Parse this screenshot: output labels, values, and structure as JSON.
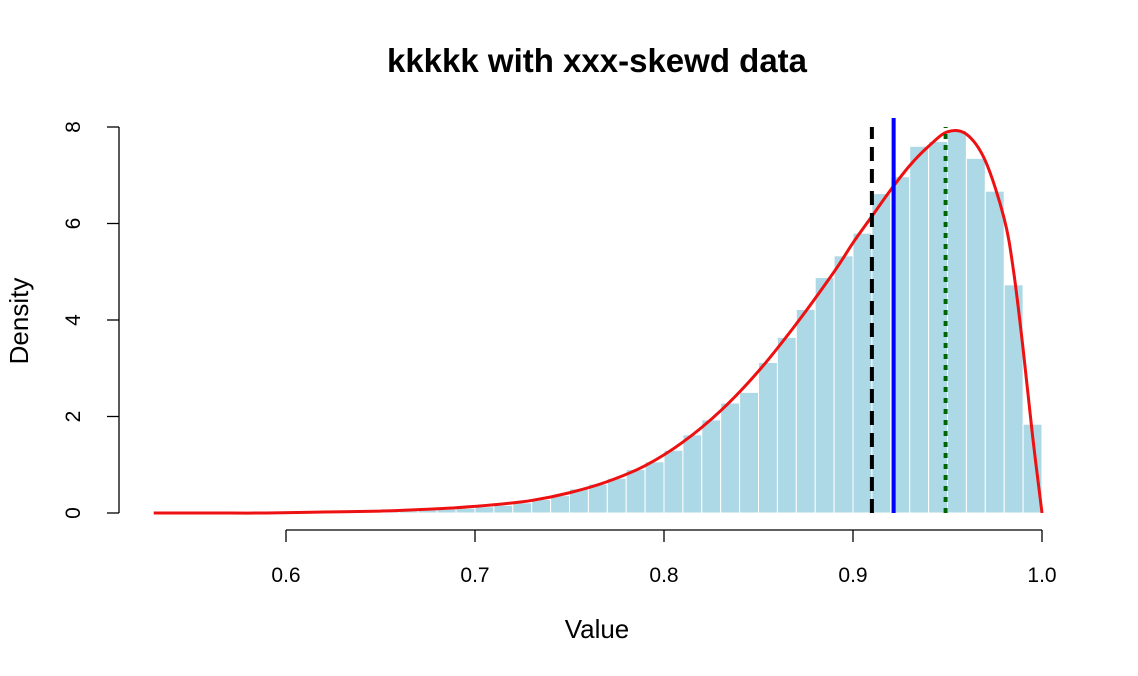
{
  "chart_data": {
    "type": "histogram",
    "title": "kkkkk with xxx-skewd data",
    "xlabel": "Value",
    "ylabel": "Density",
    "xlim": [
      0.5,
      1.0
    ],
    "ylim": [
      0,
      8
    ],
    "x_ticks": [
      0.6,
      0.7,
      0.8,
      0.9,
      1.0
    ],
    "x_tick_labels": [
      "0.6",
      "0.7",
      "0.8",
      "0.9",
      "1.0"
    ],
    "y_ticks": [
      0,
      2,
      4,
      6,
      8
    ],
    "y_tick_labels": [
      "0",
      "2",
      "4",
      "6",
      "8"
    ],
    "grid": false,
    "legend": "none",
    "bin_width": 0.01,
    "bars": {
      "color": "#add8e6",
      "bin_starts": [
        0.53,
        0.54,
        0.55,
        0.56,
        0.57,
        0.58,
        0.59,
        0.6,
        0.61,
        0.62,
        0.63,
        0.64,
        0.65,
        0.66,
        0.67,
        0.68,
        0.69,
        0.7,
        0.71,
        0.72,
        0.73,
        0.74,
        0.75,
        0.76,
        0.77,
        0.78,
        0.79,
        0.8,
        0.81,
        0.82,
        0.83,
        0.84,
        0.85,
        0.86,
        0.87,
        0.88,
        0.89,
        0.9,
        0.91,
        0.92,
        0.93,
        0.94,
        0.95,
        0.96,
        0.97,
        0.98,
        0.99
      ],
      "densities": [
        0.0,
        0.0,
        0.0,
        0.0,
        0.0,
        0.0,
        0.0,
        0.0,
        0.0,
        0.01,
        0.01,
        0.02,
        0.03,
        0.04,
        0.06,
        0.08,
        0.1,
        0.13,
        0.16,
        0.21,
        0.28,
        0.36,
        0.5,
        0.6,
        0.72,
        0.9,
        1.06,
        1.3,
        1.62,
        1.93,
        2.28,
        2.5,
        3.12,
        3.64,
        4.22,
        4.88,
        5.33,
        5.8,
        6.62,
        6.97,
        7.6,
        7.7,
        7.93,
        7.35,
        6.67,
        4.73,
        1.84
      ]
    },
    "density_curve": {
      "color": "#ee1111",
      "x": [
        0.53,
        0.56,
        0.59,
        0.62,
        0.65,
        0.67,
        0.69,
        0.71,
        0.73,
        0.75,
        0.77,
        0.79,
        0.81,
        0.83,
        0.85,
        0.87,
        0.89,
        0.9,
        0.91,
        0.92,
        0.93,
        0.94,
        0.95,
        0.96,
        0.97,
        0.98,
        0.985,
        0.99,
        0.995,
        1.0
      ],
      "y": [
        0.0,
        0.0,
        0.0,
        0.02,
        0.04,
        0.07,
        0.11,
        0.17,
        0.26,
        0.42,
        0.65,
        0.98,
        1.47,
        2.12,
        2.94,
        3.92,
        5.0,
        5.6,
        6.15,
        6.7,
        7.2,
        7.6,
        7.9,
        7.85,
        7.3,
        6.1,
        5.0,
        3.4,
        1.6,
        0.0
      ]
    },
    "vertical_lines": [
      {
        "x": 0.91,
        "color": "#000000",
        "style": "dashed"
      },
      {
        "x": 0.9215,
        "color": "#0000ff",
        "style": "solid"
      },
      {
        "x": 0.949,
        "color": "#006400",
        "style": "dotted"
      }
    ]
  }
}
